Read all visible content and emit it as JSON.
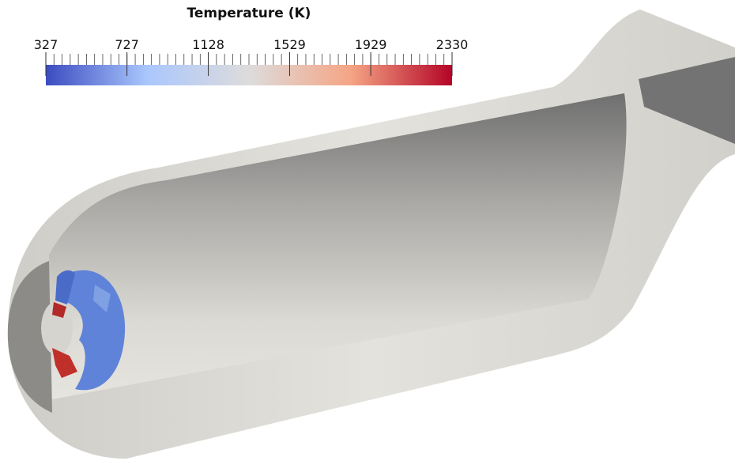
{
  "colorbar": {
    "title": "Temperature (K)",
    "range": [
      327,
      2330
    ],
    "ticks": [
      327,
      727,
      1128,
      1529,
      1929,
      2330
    ],
    "colors": [
      "#3b4cc0",
      "#aac7fd",
      "#dddcdc",
      "#f5a585",
      "#b40426"
    ]
  }
}
